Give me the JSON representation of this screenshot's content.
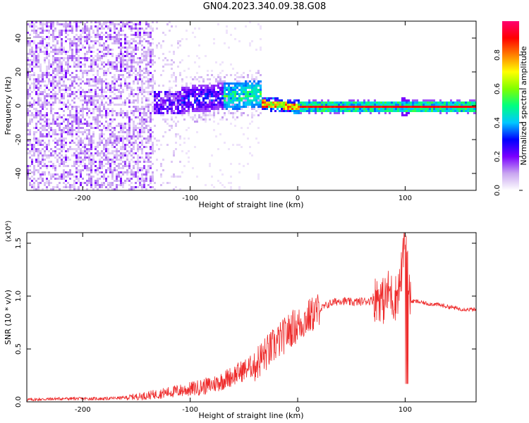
{
  "title": "GN04.2023.340.09.38.G08",
  "chart_data": [
    {
      "type": "heatmap",
      "title": "GN04.2023.340.09.38.G08",
      "xlabel": "Height of straight line (km)",
      "ylabel": "Frequency (Hz)",
      "xlim": [
        -252,
        166
      ],
      "ylim": [
        -50,
        50
      ],
      "xticks": [
        -200,
        -100,
        0,
        100
      ],
      "yticks": [
        -40,
        -20,
        0,
        20,
        40
      ],
      "colorbar": {
        "label": "Normalized spectral amplitude",
        "range": [
          0,
          1
        ],
        "ticks": [
          "0.0",
          "0.2",
          "0.4",
          "0.6",
          "0.8"
        ],
        "colors": [
          "#ffffff",
          "#c9a6f0",
          "#7a00ff",
          "#0000ff",
          "#00c8ff",
          "#00ff80",
          "#80ff00",
          "#ffff00",
          "#ff8000",
          "#ff0000",
          "#ff0070"
        ]
      },
      "features": [
        {
          "x_range": [
            -252,
            -135
          ],
          "description_level": 0.18,
          "freq_band": [
            -50,
            50
          ]
        },
        {
          "x_range": [
            -135,
            -35
          ],
          "freq_center": [
            3,
            8
          ],
          "level": 0.4
        },
        {
          "x_range": [
            -35,
            166
          ],
          "freq_center": [
            0,
            0
          ],
          "level": 0.9
        }
      ]
    },
    {
      "type": "line",
      "xlabel": "Height of straight line (km)",
      "ylabel": "SNR (10 * v/v)",
      "y_multiplier": "(x10⁴)",
      "xlim": [
        -252,
        166
      ],
      "ylim": [
        0,
        1.6
      ],
      "xticks": [
        -200,
        -100,
        0,
        100
      ],
      "yticks": [
        "0.0",
        "0.5",
        "1.0",
        "1.5"
      ],
      "color": "#ee2b2b",
      "series": [
        {
          "x": [
            -252,
            -220,
            -180,
            -160,
            -140,
            -120,
            -100,
            -80,
            -70,
            -60,
            -50,
            -40,
            -35,
            -30,
            -25,
            -20,
            -15,
            -10,
            -5,
            0,
            10,
            20,
            30,
            40,
            50,
            60,
            70,
            75,
            80,
            85,
            90,
            95,
            100,
            105,
            110,
            120,
            130,
            140,
            150,
            166
          ],
          "y": [
            0.02,
            0.03,
            0.03,
            0.04,
            0.06,
            0.09,
            0.12,
            0.16,
            0.2,
            0.25,
            0.3,
            0.35,
            0.4,
            0.45,
            0.5,
            0.55,
            0.6,
            0.65,
            0.7,
            0.72,
            0.8,
            0.87,
            0.93,
            0.96,
            0.94,
            0.95,
            0.96,
            1.0,
            0.95,
            1.05,
            0.96,
            1.1,
            1.5,
            0.95,
            0.95,
            0.93,
            0.92,
            0.9,
            0.88,
            0.87
          ]
        }
      ]
    }
  ]
}
